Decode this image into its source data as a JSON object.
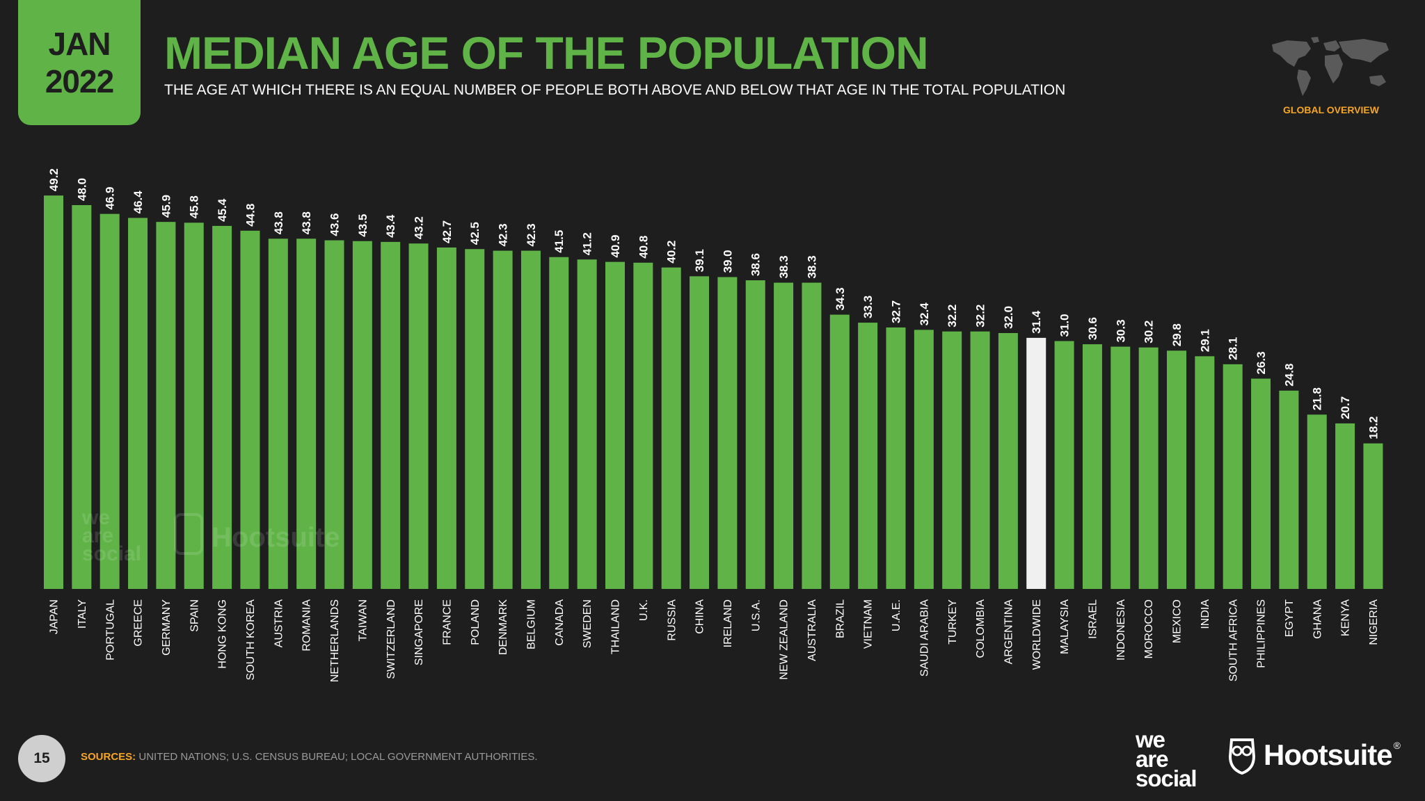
{
  "header": {
    "month": "JAN",
    "year": "2022",
    "title": "MEDIAN AGE OF THE POPULATION",
    "subtitle": "THE AGE AT WHICH THERE IS AN EQUAL NUMBER OF PEOPLE BOTH ABOVE AND BELOW THAT AGE IN THE TOTAL POPULATION",
    "section": "GLOBAL OVERVIEW"
  },
  "footer": {
    "page_number": "15",
    "sources_label": "SOURCES:",
    "sources_text": "UNITED NATIONS; U.S. CENSUS BUREAU; LOCAL GOVERNMENT AUTHORITIES."
  },
  "brand": {
    "was_line1": "we",
    "was_line2": "are",
    "was_line3": "social",
    "hootsuite": "Hootsuite",
    "trademark": "®"
  },
  "colors": {
    "background": "#1e1e1e",
    "accent": "#5fb347",
    "highlight_bar": "#f0f0f0",
    "label": "#ffffff",
    "section": "#f6a623"
  },
  "icons": [
    "world-map-icon",
    "hootsuite-owl-icon"
  ],
  "chart_data": {
    "type": "bar",
    "title": "MEDIAN AGE OF THE POPULATION",
    "xlabel": "",
    "ylabel": "",
    "ylim": [
      0,
      50
    ],
    "grid": false,
    "highlight": "WORLDWIDE",
    "categories": [
      "JAPAN",
      "ITALY",
      "PORTUGAL",
      "GREECE",
      "GERMANY",
      "SPAIN",
      "HONG KONG",
      "SOUTH KOREA",
      "AUSTRIA",
      "ROMANIA",
      "NETHERLANDS",
      "TAIWAN",
      "SWITZERLAND",
      "SINGAPORE",
      "FRANCE",
      "POLAND",
      "DENMARK",
      "BELGIUM",
      "CANADA",
      "SWEDEN",
      "THAILAND",
      "U.K.",
      "RUSSIA",
      "CHINA",
      "IRELAND",
      "U.S.A.",
      "NEW ZEALAND",
      "AUSTRALIA",
      "BRAZIL",
      "VIETNAM",
      "U.A.E.",
      "SAUDI ARABIA",
      "TURKEY",
      "COLOMBIA",
      "ARGENTINA",
      "WORLDWIDE",
      "MALAYSIA",
      "ISRAEL",
      "INDONESIA",
      "MOROCCO",
      "MEXICO",
      "INDIA",
      "SOUTH AFRICA",
      "PHILIPPINES",
      "EGYPT",
      "GHANA",
      "KENYA",
      "NIGERIA"
    ],
    "values": [
      49.2,
      48.0,
      46.9,
      46.4,
      45.9,
      45.8,
      45.4,
      44.8,
      43.8,
      43.8,
      43.6,
      43.5,
      43.4,
      43.2,
      42.7,
      42.5,
      42.3,
      42.3,
      41.5,
      41.2,
      40.9,
      40.8,
      40.2,
      39.1,
      39.0,
      38.6,
      38.3,
      38.3,
      34.3,
      33.3,
      32.7,
      32.4,
      32.2,
      32.2,
      32.0,
      31.4,
      31.0,
      30.6,
      30.3,
      30.2,
      29.8,
      29.1,
      28.1,
      26.3,
      24.8,
      21.8,
      20.7,
      18.2
    ],
    "value_labels": [
      "49.2",
      "48.0",
      "46.9",
      "46.4",
      "45.9",
      "45.8",
      "45.4",
      "44.8",
      "43.8",
      "43.8",
      "43.6",
      "43.5",
      "43.4",
      "43.2",
      "42.7",
      "42.5",
      "42.3",
      "42.3",
      "41.5",
      "41.2",
      "40.9",
      "40.8",
      "40.2",
      "39.1",
      "39.0",
      "38.6",
      "38.3",
      "38.3",
      "34.3",
      "33.3",
      "32.7",
      "32.4",
      "32.2",
      "32.2",
      "32.0",
      "31.4",
      "31.0",
      "30.6",
      "30.3",
      "30.2",
      "29.8",
      "29.1",
      "28.1",
      "26.3",
      "24.8",
      "21.8",
      "20.7",
      "18.2"
    ]
  }
}
